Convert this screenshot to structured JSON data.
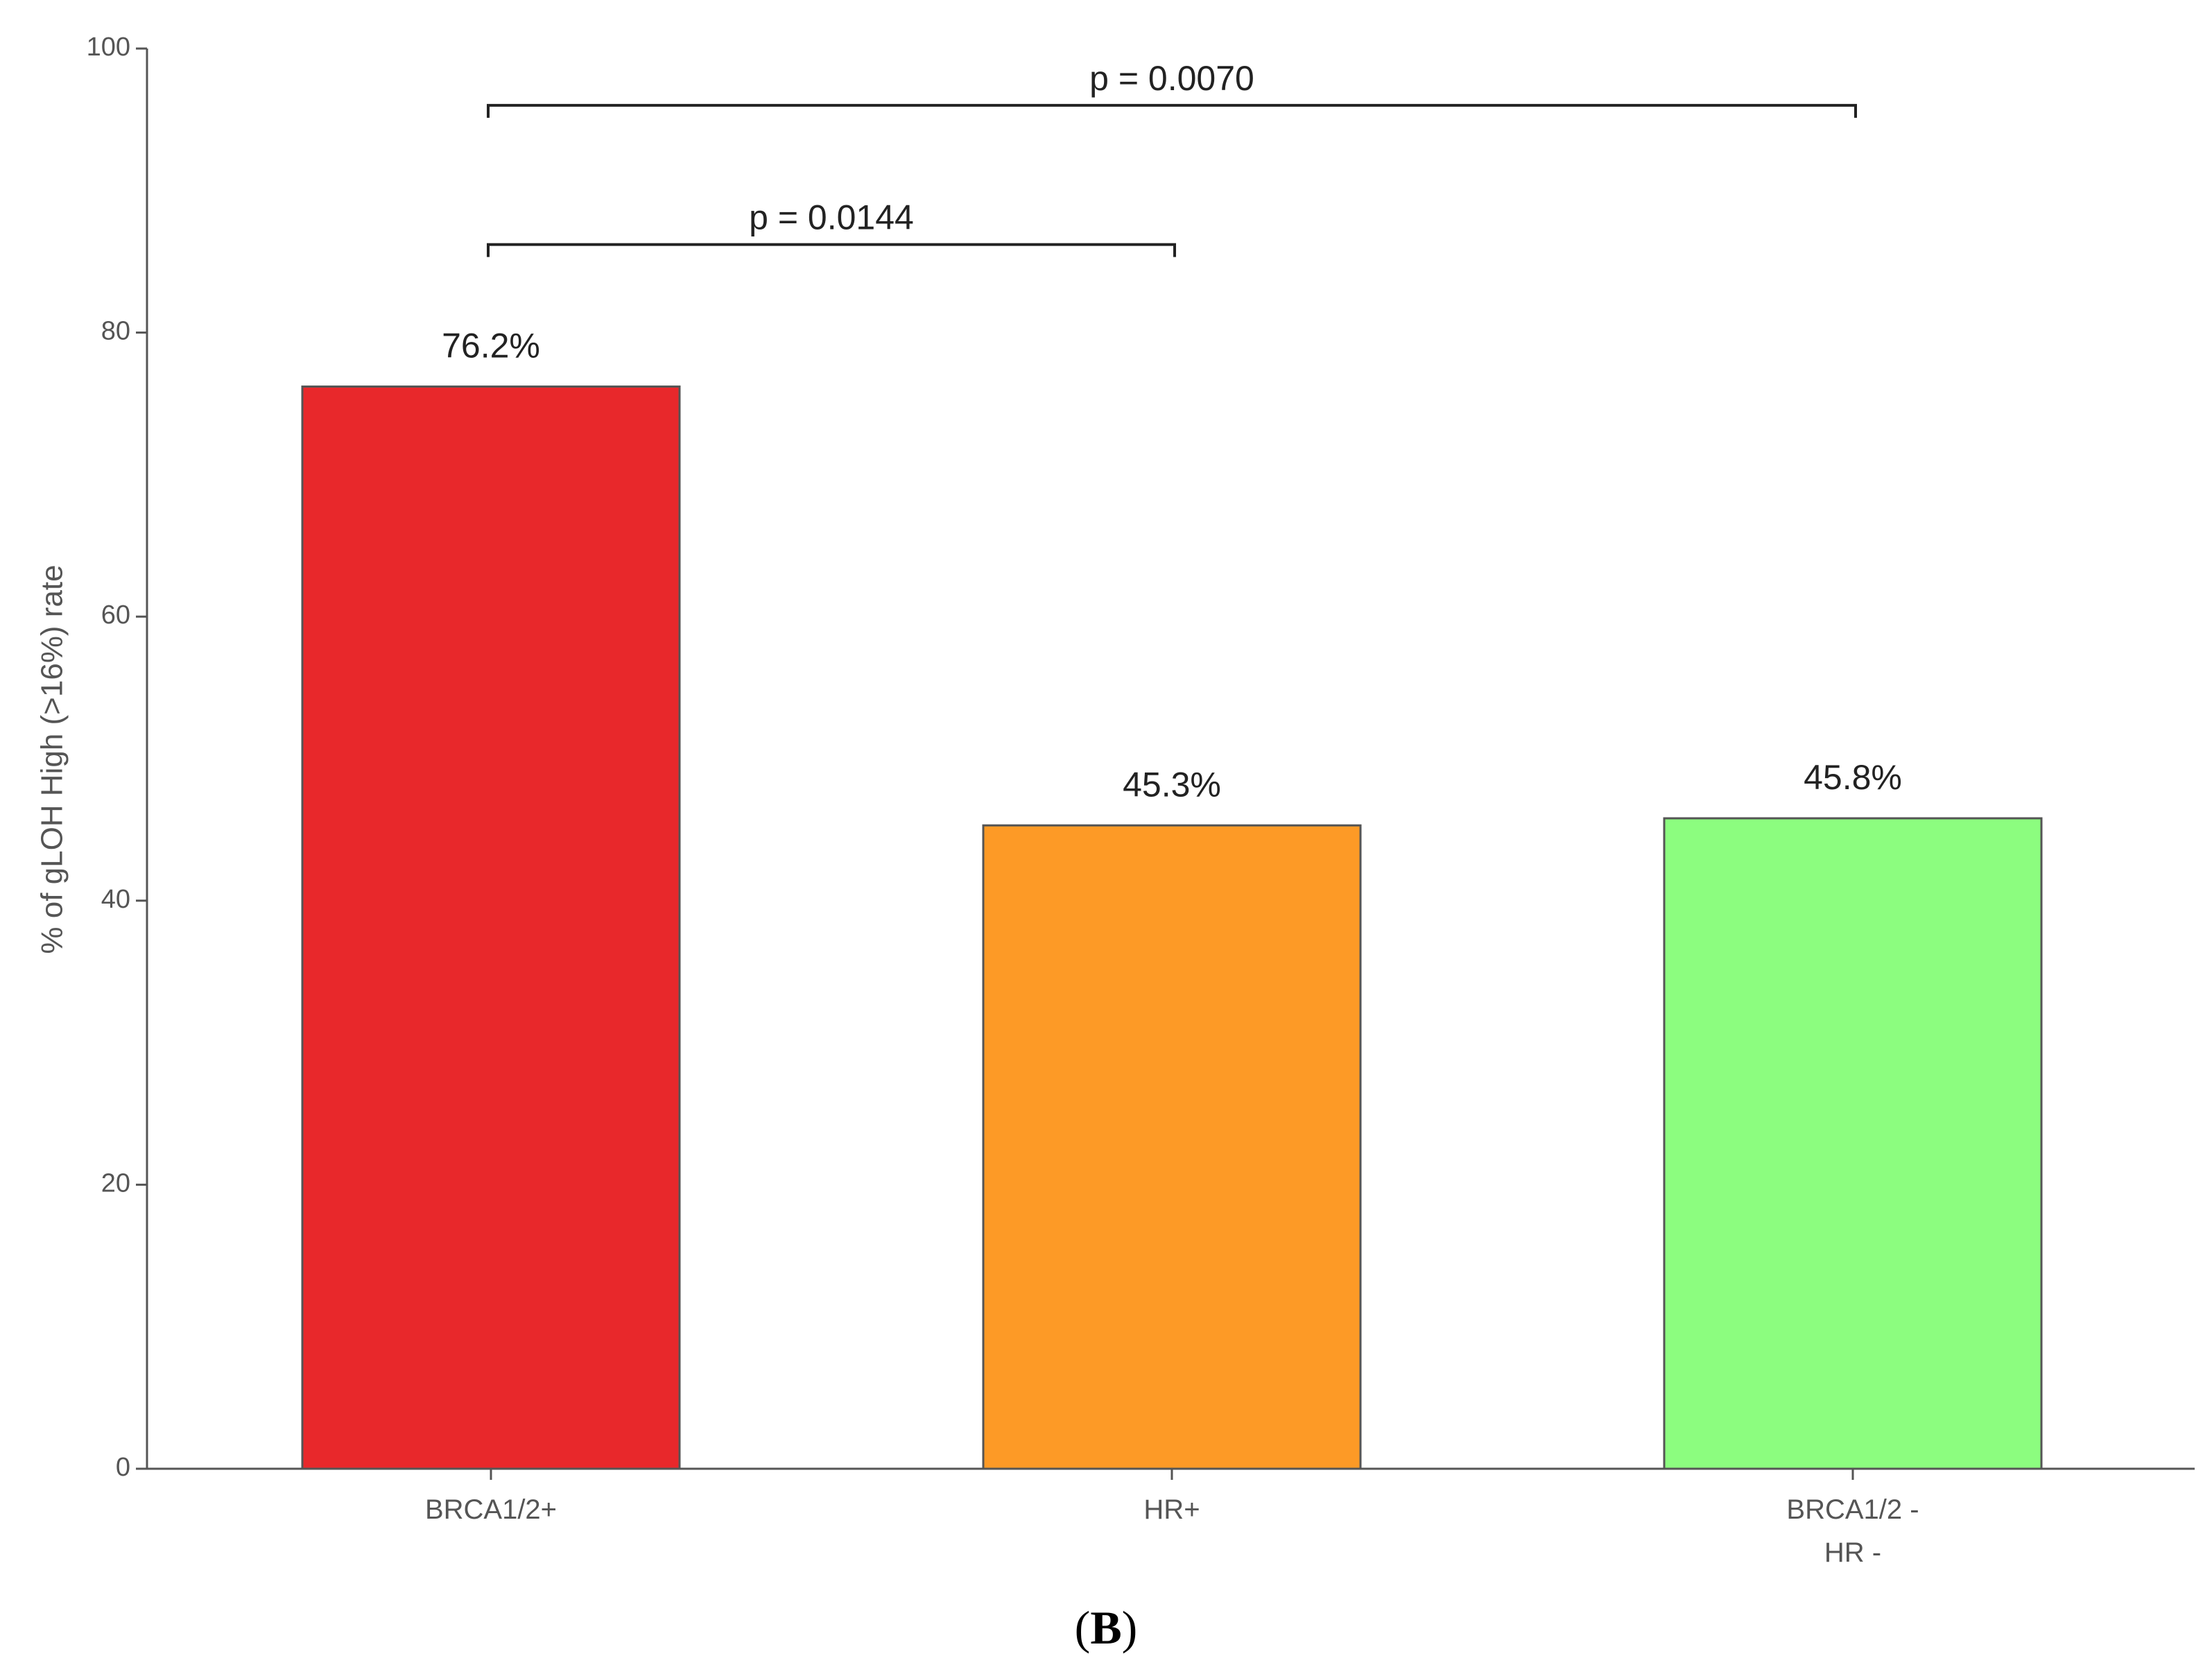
{
  "chart_data": {
    "type": "bar",
    "categories": [
      [
        "BRCA1/2+"
      ],
      [
        "HR+"
      ],
      [
        "BRCA1/2 -",
        "HR -"
      ]
    ],
    "values": [
      76.2,
      45.3,
      45.8
    ],
    "value_labels": [
      "76.2%",
      "45.3%",
      "45.8%"
    ],
    "colors": [
      "#e8282b",
      "#fd9a26",
      "#8cfd7f"
    ],
    "ylabel": "% of gLOH High (>16%) rate",
    "ylim": [
      0,
      100
    ],
    "yticks": [
      0,
      20,
      40,
      60,
      80,
      100
    ],
    "grid": false,
    "comparisons": [
      {
        "from": 0,
        "to": 2,
        "label": "p = 0.0070",
        "level": 96
      },
      {
        "from": 0,
        "to": 1,
        "label": "p = 0.0144",
        "level": 86.2
      }
    ]
  },
  "panel_label": {
    "open": "(",
    "letter": "B",
    "close": ")"
  }
}
